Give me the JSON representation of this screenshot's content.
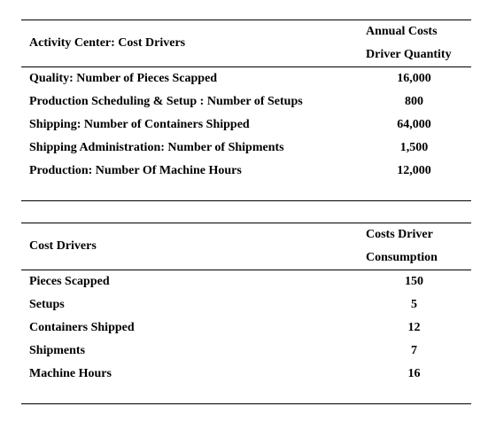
{
  "table1": {
    "header_left": "Activity Center: Cost Drivers",
    "header_right_line1": "Annual Costs",
    "header_right_line2": "Driver Quantity",
    "rows": [
      {
        "label": "Quality: Number of Pieces Scapped",
        "value": "16,000"
      },
      {
        "label": "Production Scheduling & Setup : Number of Setups",
        "value": "800"
      },
      {
        "label": "Shipping: Number of Containers Shipped",
        "value": "64,000"
      },
      {
        "label": "Shipping Administration: Number of Shipments",
        "value": "1,500"
      },
      {
        "label": "Production: Number Of Machine Hours",
        "value": "12,000"
      }
    ]
  },
  "table2": {
    "header_left": "Cost Drivers",
    "header_right_line1": "Costs Driver",
    "header_right_line2": "Consumption",
    "rows": [
      {
        "label": "Pieces Scapped",
        "value": "150"
      },
      {
        "label": "Setups",
        "value": "5"
      },
      {
        "label": "Containers Shipped",
        "value": "12"
      },
      {
        "label": "Shipments",
        "value": "7"
      },
      {
        "label": "Machine Hours",
        "value": "16"
      }
    ]
  }
}
